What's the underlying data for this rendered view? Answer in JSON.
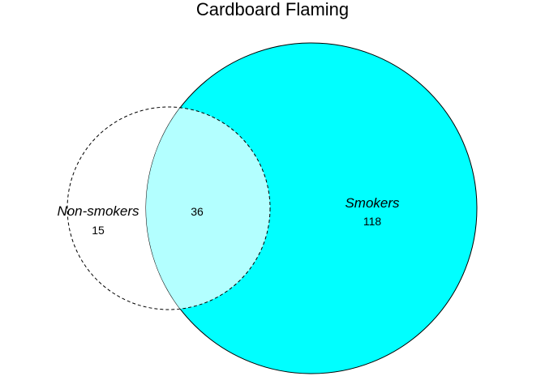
{
  "title": "Cardboard Flaming",
  "sets": [
    {
      "name": "Non-smokers",
      "only_count": "15",
      "fill": "#ffffff",
      "stroke": "#000000",
      "line": "dashed"
    },
    {
      "name": "Smokers",
      "only_count": "118",
      "fill": "#00ffff",
      "stroke": "#000000",
      "line": "solid"
    }
  ],
  "intersection": {
    "count": "36",
    "fill": "#b3ffff"
  }
}
